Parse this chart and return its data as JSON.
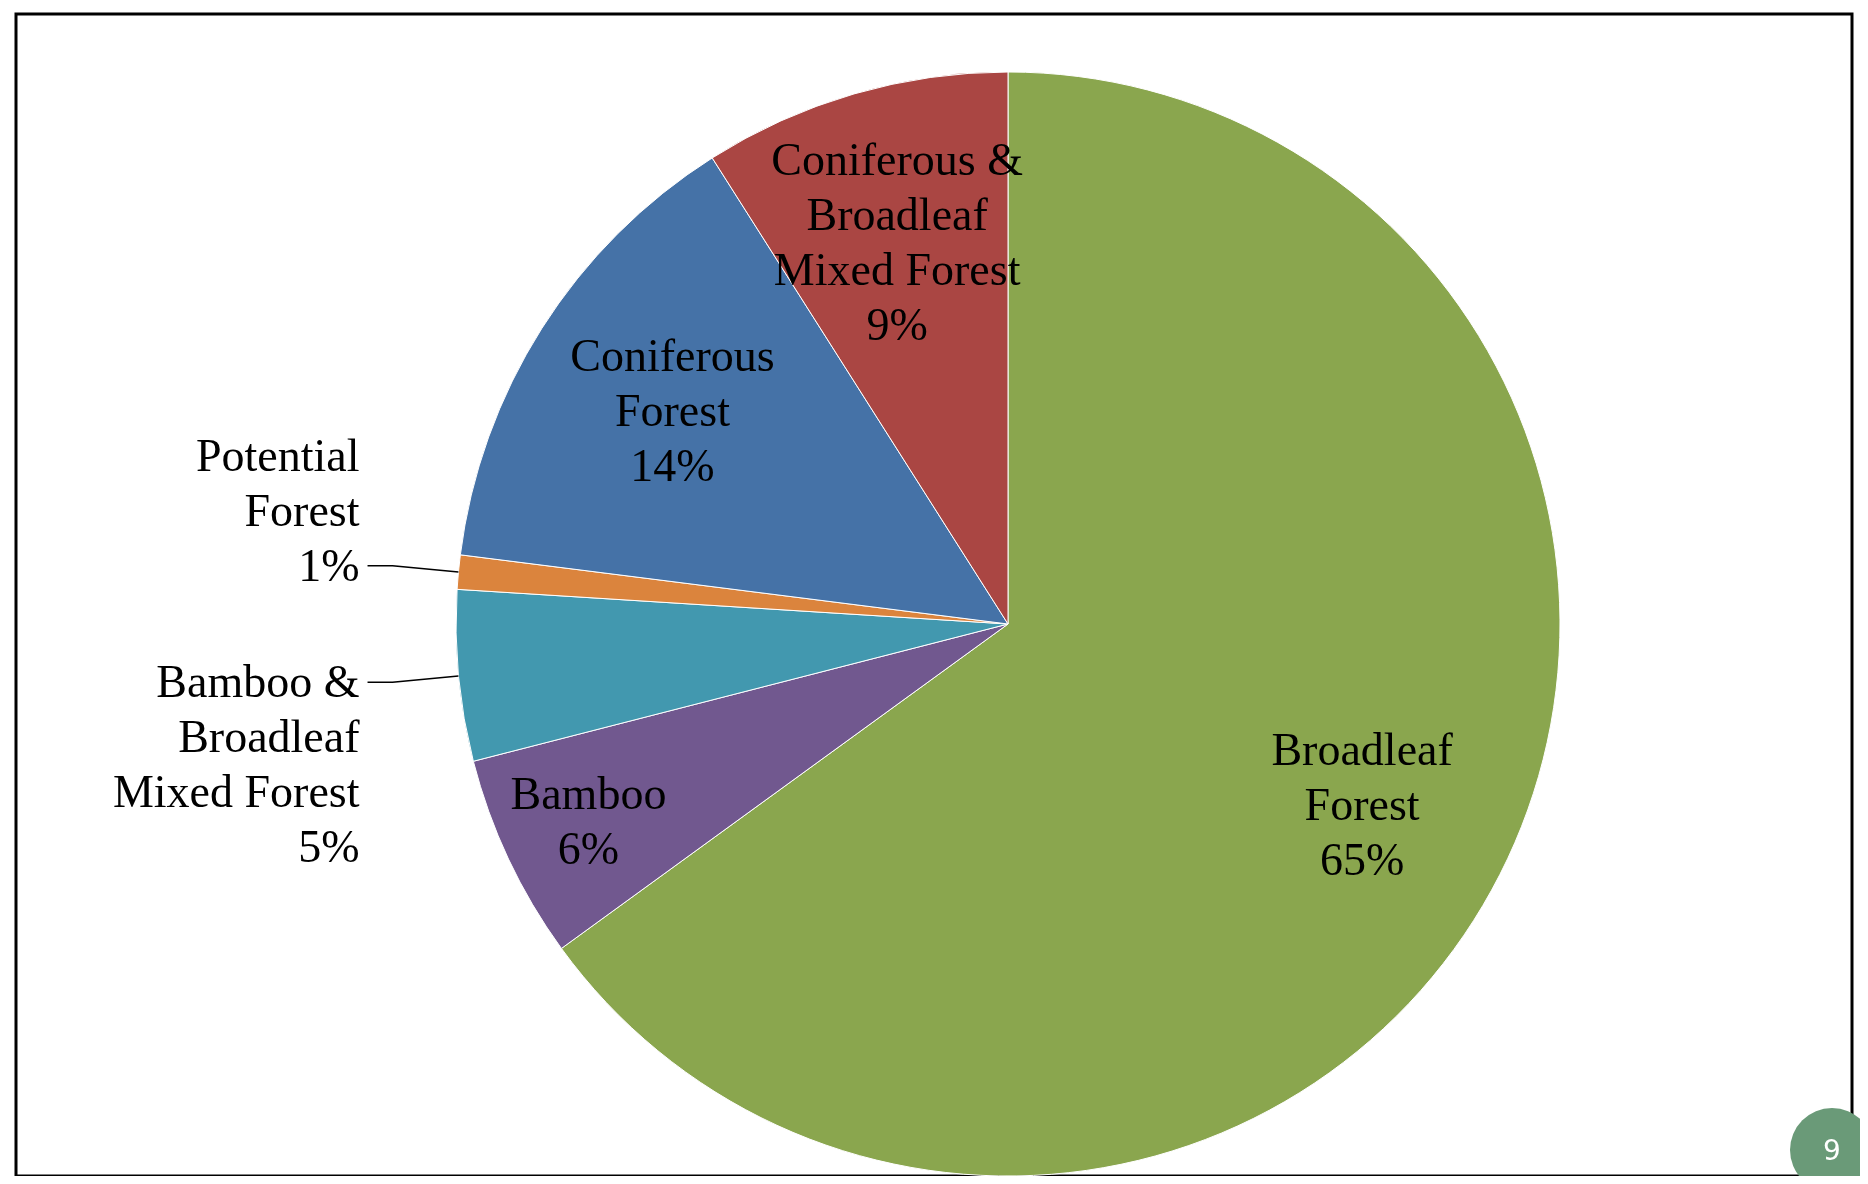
{
  "chart_data": {
    "type": "pie",
    "categories": [
      "Broadleaf Forest",
      "Bamboo",
      "Bamboo & Broadleaf Mixed Forest",
      "Potential Forest",
      "Coniferous Forest",
      "Coniferous & Broadleaf Mixed Forest"
    ],
    "values": [
      65,
      6,
      5,
      1,
      14,
      9
    ],
    "colors": [
      "#8aa64e",
      "#71588f",
      "#4298af",
      "#db843d",
      "#4572a7",
      "#aa4643"
    ],
    "value_labels": [
      "65%",
      "6%",
      "5%",
      "1%",
      "14%",
      "9%"
    ],
    "annotations": [
      "9"
    ]
  }
}
